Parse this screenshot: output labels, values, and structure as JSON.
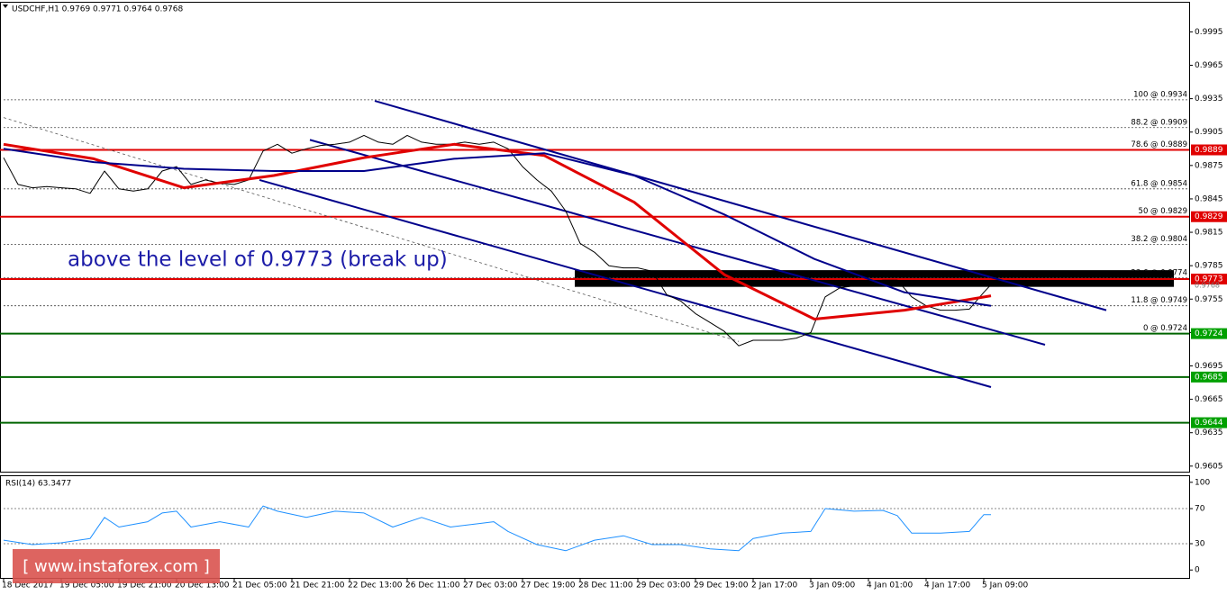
{
  "chart_data": [
    {
      "type": "line",
      "title": "USDCHF,H1 0.9769 0.9771 0.9764 0.9768",
      "annotation": "above the level of 0.9773 (break up)",
      "xlim": [
        0,
        329
      ],
      "ylim": [
        0.96,
        1.0022
      ],
      "yticks": [
        0.9995,
        0.9965,
        0.9935,
        0.9905,
        0.9875,
        0.9845,
        0.9815,
        0.9785,
        0.9755,
        0.9725,
        0.9695,
        0.9665,
        0.9635,
        0.9605
      ],
      "series": [
        {
          "color": "#000000",
          "line_width": 1,
          "x": [
            0,
            4,
            8,
            12,
            16,
            20,
            24,
            28,
            32,
            36,
            40,
            44,
            48,
            52,
            56,
            60,
            64,
            68,
            72,
            76,
            80,
            84,
            88,
            92,
            96,
            100,
            104,
            108,
            112,
            116,
            120,
            124,
            128,
            132,
            136,
            140,
            144,
            148,
            152,
            156,
            160,
            164,
            168,
            172,
            176,
            180,
            184,
            188,
            192,
            196,
            200,
            204,
            208,
            212,
            216,
            220,
            224,
            228,
            232,
            236,
            240,
            244,
            248,
            252,
            256,
            260,
            264,
            268,
            272,
            274
          ],
          "values": [
            0.9882,
            0.9858,
            0.9855,
            0.9856,
            0.9855,
            0.9854,
            0.985,
            0.987,
            0.9854,
            0.9852,
            0.9854,
            0.987,
            0.9874,
            0.9858,
            0.9862,
            0.9859,
            0.9858,
            0.9862,
            0.9888,
            0.9894,
            0.9886,
            0.989,
            0.9893,
            0.9894,
            0.9896,
            0.9902,
            0.9896,
            0.9894,
            0.9902,
            0.9896,
            0.9894,
            0.9894,
            0.9896,
            0.9894,
            0.9896,
            0.989,
            0.9874,
            0.9862,
            0.9852,
            0.9834,
            0.9805,
            0.9797,
            0.9785,
            0.9783,
            0.9783,
            0.978,
            0.9759,
            0.9753,
            0.9742,
            0.9734,
            0.9726,
            0.9713,
            0.9718,
            0.9718,
            0.9718,
            0.972,
            0.9725,
            0.9757,
            0.9765,
            0.9767,
            0.977,
            0.9772,
            0.9772,
            0.9757,
            0.9749,
            0.9745,
            0.9745,
            0.9746,
            0.9761,
            0.9768
          ]
        },
        {
          "color": "#e00000",
          "line_width": 3,
          "x": [
            0,
            25,
            50,
            75,
            100,
            125,
            150,
            175,
            200,
            225,
            250,
            274
          ],
          "values": [
            0.9894,
            0.9881,
            0.9855,
            0.9866,
            0.9882,
            0.9894,
            0.9884,
            0.9842,
            0.9777,
            0.9737,
            0.9745,
            0.9758
          ]
        },
        {
          "color": "#00008b",
          "line_width": 2,
          "x": [
            0,
            25,
            50,
            75,
            100,
            125,
            150,
            175,
            200,
            225,
            250,
            274
          ],
          "values": [
            0.989,
            0.9878,
            0.9872,
            0.987,
            0.987,
            0.9881,
            0.9886,
            0.9866,
            0.9831,
            0.9791,
            0.9761,
            0.9749
          ]
        }
      ],
      "trend_lines": [
        {
          "x": [
            103,
            306
          ],
          "values": [
            0.9933,
            0.9745
          ],
          "color": "#00008b"
        },
        {
          "x": [
            85,
            289
          ],
          "values": [
            0.9898,
            0.9714
          ],
          "color": "#00008b"
        },
        {
          "x": [
            71,
            274
          ],
          "values": [
            0.9862,
            0.9676
          ],
          "color": "#00008b"
        },
        {
          "x": [
            0,
            204
          ],
          "values": [
            0.9918,
            0.9717
          ],
          "color": "#555555",
          "dashed": true
        }
      ],
      "fib_levels": [
        {
          "value": 0.9934,
          "label": "100 @ 0.9934"
        },
        {
          "value": 0.9909,
          "label": "88.2 @ 0.9909"
        },
        {
          "value": 0.9889,
          "label": "78.6 @ 0.9889"
        },
        {
          "value": 0.9854,
          "label": "61.8 @ 0.9854"
        },
        {
          "value": 0.9829,
          "label": "50 @ 0.9829"
        },
        {
          "value": 0.9804,
          "label": "38.2 @ 0.9804"
        },
        {
          "value": 0.9774,
          "label": "23.6 @ 0.9774"
        },
        {
          "value": 0.9749,
          "label": "11.8 @ 0.9749"
        },
        {
          "value": 0.9724,
          "label": "0 @ 0.9724"
        }
      ],
      "levels": [
        {
          "value": 0.9889,
          "color": "#e00000"
        },
        {
          "value": 0.9829,
          "color": "#e00000"
        },
        {
          "value": 0.9773,
          "color": "#e00000"
        },
        {
          "value": 0.9724,
          "color": "#006400"
        },
        {
          "value": 0.9685,
          "color": "#006400"
        },
        {
          "value": 0.9644,
          "color": "#006400"
        }
      ],
      "zone": {
        "x": [
          158.5,
          324.75
        ],
        "y": [
          0.9781,
          0.9766
        ],
        "color": "#000000"
      },
      "current_price": 0.9768
    },
    {
      "type": "line",
      "title": "RSI(14) 63.3477",
      "xlim": [
        0,
        329
      ],
      "ylim": [
        -9,
        108
      ],
      "yticks": [
        100,
        70,
        30,
        0
      ],
      "levels": [
        70,
        30
      ],
      "xticks": [
        {
          "value": 0,
          "label": "18 Dec 2017"
        },
        {
          "value": 16,
          "label": "19 Dec 05:00"
        },
        {
          "value": 32,
          "label": "19 Dec 21:00"
        },
        {
          "value": 48,
          "label": "20 Dec 13:00"
        },
        {
          "value": 64,
          "label": "21 Dec 05:00"
        },
        {
          "value": 80,
          "label": "21 Dec 21:00"
        },
        {
          "value": 96,
          "label": "22 Dec 13:00"
        },
        {
          "value": 112,
          "label": "26 Dec 11:00"
        },
        {
          "value": 128,
          "label": "27 Dec 03:00"
        },
        {
          "value": 144,
          "label": "27 Dec 19:00"
        },
        {
          "value": 160,
          "label": "28 Dec 11:00"
        },
        {
          "value": 176,
          "label": "29 Dec 03:00"
        },
        {
          "value": 192,
          "label": "29 Dec 19:00"
        },
        {
          "value": 208,
          "label": "2 Jan 17:00"
        },
        {
          "value": 224,
          "label": "3 Jan 09:00"
        },
        {
          "value": 240,
          "label": "4 Jan 01:00"
        },
        {
          "value": 256,
          "label": "4 Jan 17:00"
        },
        {
          "value": 272,
          "label": "5 Jan 09:00"
        }
      ],
      "series": [
        {
          "color": "#1e90ff",
          "line_width": 1,
          "x": [
            0,
            8,
            16,
            24,
            28,
            32,
            40,
            44,
            48,
            52,
            60,
            68,
            72,
            76,
            84,
            92,
            100,
            108,
            116,
            124,
            132,
            136,
            140,
            148,
            156,
            164,
            172,
            180,
            188,
            196,
            204,
            208,
            216,
            224,
            228,
            236,
            244,
            248,
            252,
            260,
            268,
            272,
            274
          ],
          "values": [
            34,
            29,
            31,
            36,
            60,
            49,
            55,
            65,
            67,
            49,
            55,
            49,
            73,
            67,
            60,
            67,
            65,
            49,
            60,
            49,
            53,
            55,
            44,
            29,
            22,
            34,
            39,
            29,
            29,
            24,
            22,
            36,
            42,
            44,
            70,
            67,
            68,
            62,
            42,
            42,
            44,
            63,
            63
          ]
        }
      ]
    }
  ],
  "watermark": "[ www.instaforex.com ]"
}
